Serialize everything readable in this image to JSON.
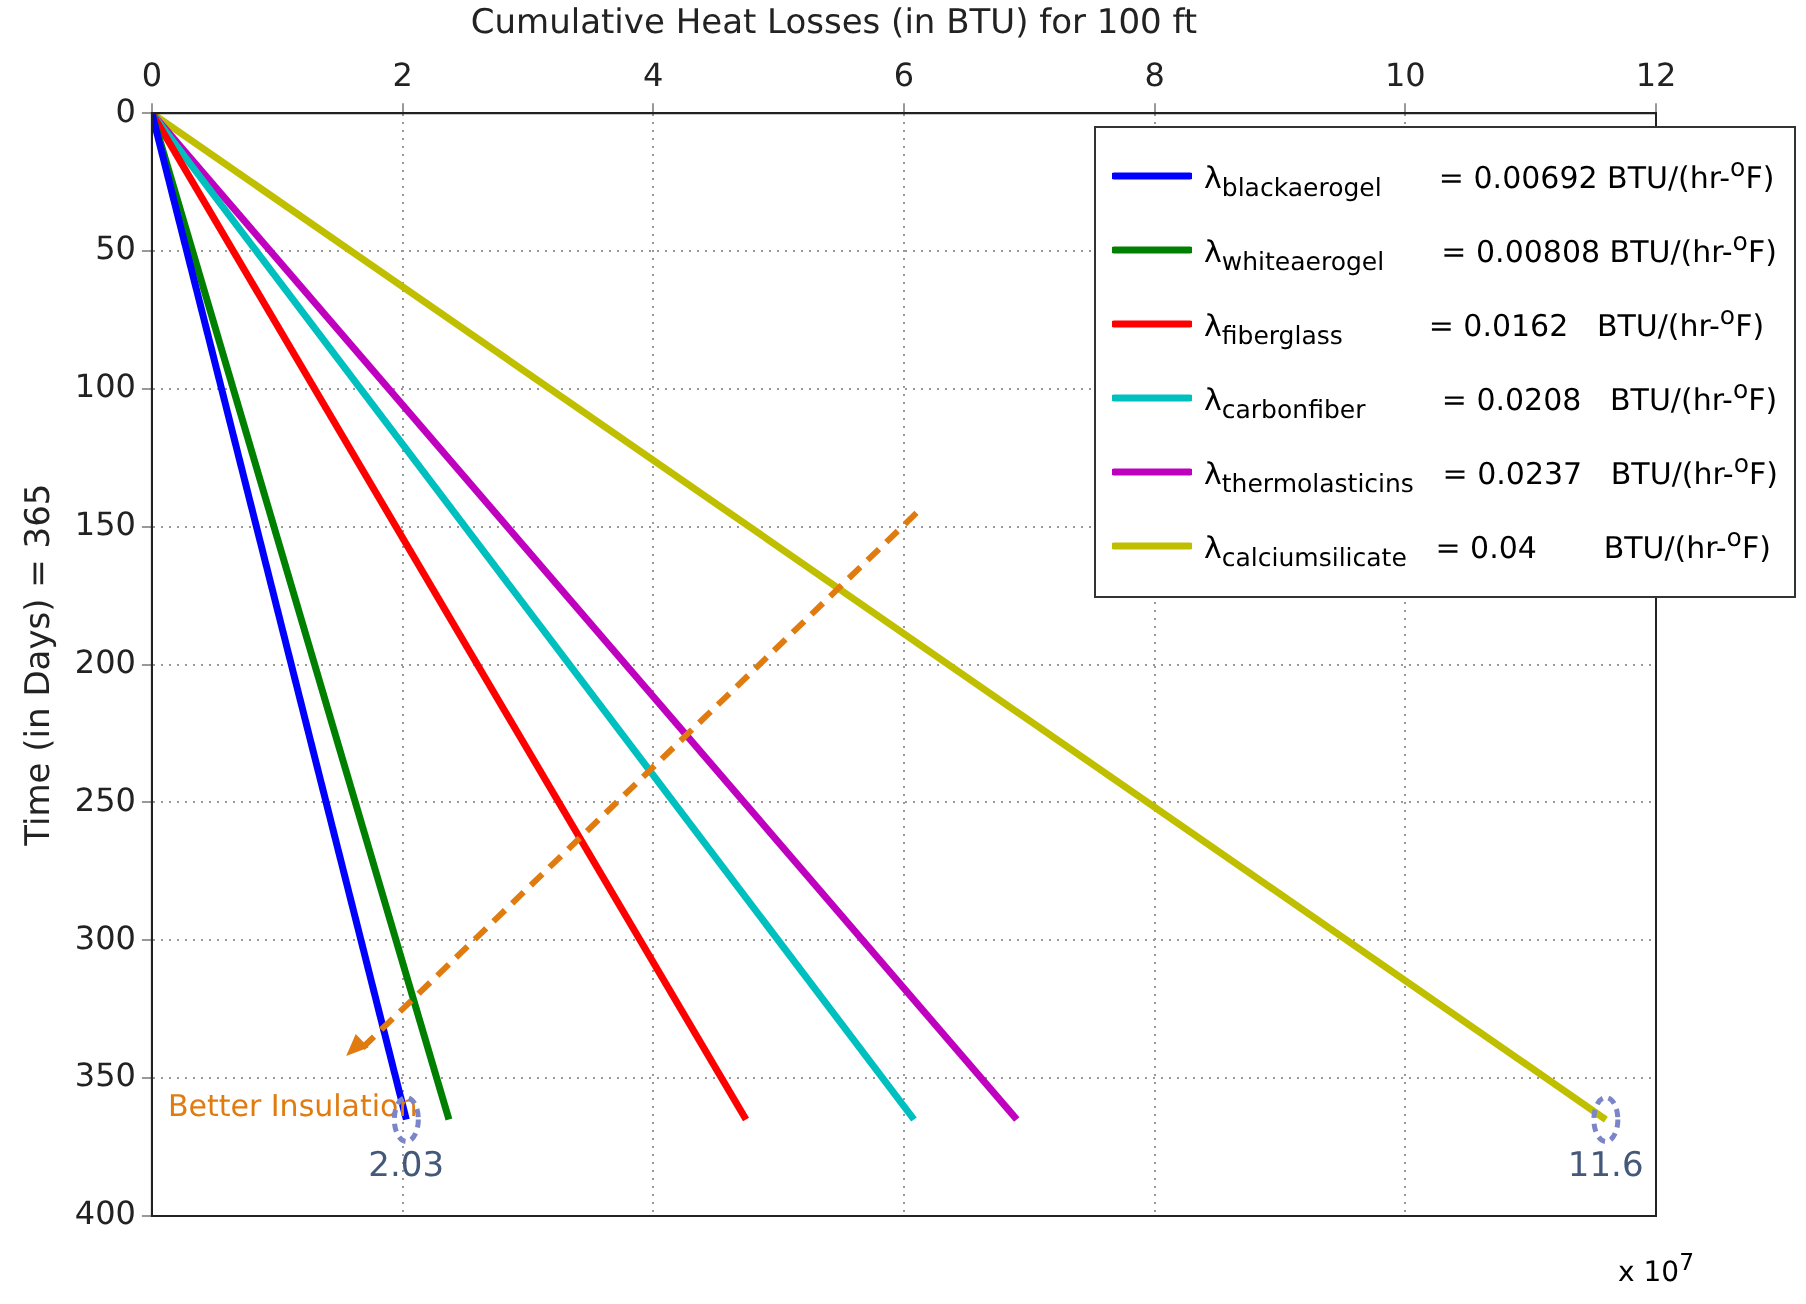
{
  "chart_data": {
    "type": "line",
    "title": "Cumulative Heat Losses (in BTU) for 100 ft",
    "xlabel": "x 10$^{7}$",
    "ylabel": "Time (in Days) = 365",
    "xlim": [
      0,
      12
    ],
    "xticks": [
      0,
      2,
      4,
      6,
      8,
      10,
      12
    ],
    "ylim": [
      400,
      0
    ],
    "yticks": [
      0,
      50,
      100,
      150,
      200,
      250,
      300,
      350,
      400
    ],
    "grid": true,
    "legend": "top right",
    "series": [
      {
        "name": "λ$_{blackaerogel}$      = 0.00692 BTU/(hr-$^{o}$F)",
        "color": "#0000ff",
        "x": [
          0,
          2.03
        ],
        "values": [
          0,
          365
        ]
      },
      {
        "name": "λ$_{whiteaerogel}$      = 0.00808 BTU/(hr-$^{o}$F)",
        "color": "#008000",
        "x": [
          0,
          2.37
        ],
        "values": [
          0,
          365
        ]
      },
      {
        "name": "λ$_{fiberglass}$         = 0.0162   BTU/(hr-$^{o}$F)",
        "color": "#ff0000",
        "x": [
          0,
          4.74
        ],
        "values": [
          0,
          365
        ]
      },
      {
        "name": "λ$_{carbonfiber}$        = 0.0208   BTU/(hr-$^{o}$F)",
        "color": "#00bfbf",
        "x": [
          0,
          6.08
        ],
        "values": [
          0,
          365
        ]
      },
      {
        "name": "λ$_{thermolasticins}$   = 0.0237   BTU/(hr-$^{o}$F)",
        "color": "#bf00bf",
        "x": [
          0,
          6.9
        ],
        "values": [
          0,
          365
        ]
      },
      {
        "name": "λ$_{calciumsilicate}$   = 0.04       BTU/(hr-$^{o}$F)",
        "color": "#bfbf00",
        "x": [
          0,
          11.6
        ],
        "values": [
          0,
          365
        ]
      }
    ],
    "annotations": [
      {
        "text": "2.03",
        "x": 2.03,
        "y": 365
      },
      {
        "text": "11.6",
        "x": 11.6,
        "y": 365
      },
      "Better Insulation"
    ]
  }
}
